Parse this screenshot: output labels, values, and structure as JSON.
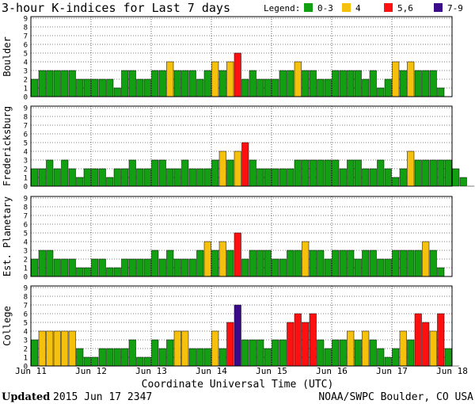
{
  "title": "3-hour K-indices for Last 7 days",
  "legend": {
    "label": "Legend:",
    "entries": [
      {
        "label": "0-3",
        "color": "#12a012"
      },
      {
        "label": "4",
        "color": "#f5c10c"
      },
      {
        "label": "5,6",
        "color": "#ff1010"
      },
      {
        "label": "7-9",
        "color": "#3a0a8a"
      }
    ]
  },
  "footer": {
    "updated_label": "Updated",
    "updated_value": "2015 Jun 17 2347",
    "source": "NOAA/SWPC Boulder, CO USA"
  },
  "chart_data": [
    {
      "type": "bar",
      "title": "Boulder",
      "ylabel": "Boulder",
      "ylim": [
        0,
        9
      ],
      "yticks": [
        0,
        1,
        2,
        3,
        4,
        5,
        6,
        7,
        8,
        9
      ],
      "xlabel": "Coordinate Universal Time (UTC)",
      "x_tick_labels": [
        "Jun 11",
        "Jun 12",
        "Jun 13",
        "Jun 14",
        "Jun 15",
        "Jun 16",
        "Jun 17",
        "Jun 18"
      ],
      "bars_per_day": 8,
      "values": [
        2,
        3,
        3,
        3,
        3,
        3,
        2,
        2,
        2,
        2,
        2,
        1,
        3,
        3,
        2,
        2,
        3,
        3,
        4,
        3,
        3,
        3,
        2,
        3,
        4,
        3,
        4,
        5,
        2,
        3,
        2,
        2,
        2,
        3,
        3,
        4,
        3,
        3,
        2,
        2,
        3,
        3,
        3,
        3,
        2,
        3,
        1,
        2,
        4,
        3,
        4,
        3,
        3,
        3,
        1,
        0
      ]
    },
    {
      "type": "bar",
      "title": "Fredericksburg",
      "ylabel": "Fredericksburg",
      "ylim": [
        0,
        9
      ],
      "yticks": [
        0,
        1,
        2,
        3,
        4,
        5,
        6,
        7,
        8,
        9
      ],
      "xlabel": "Coordinate Universal Time (UTC)",
      "x_tick_labels": [
        "Jun 11",
        "Jun 12",
        "Jun 13",
        "Jun 14",
        "Jun 15",
        "Jun 16",
        "Jun 17",
        "Jun 18"
      ],
      "bars_per_day": 8,
      "values": [
        2,
        2,
        3,
        2,
        3,
        2,
        1,
        2,
        2,
        2,
        1,
        2,
        2,
        3,
        2,
        2,
        3,
        3,
        2,
        2,
        3,
        2,
        2,
        2,
        3,
        4,
        3,
        4,
        5,
        3,
        2,
        2,
        2,
        2,
        2,
        3,
        3,
        3,
        3,
        3,
        3,
        2,
        3,
        3,
        2,
        2,
        3,
        2,
        1,
        2,
        4,
        3,
        3,
        3,
        3,
        3,
        2,
        1,
        0
      ]
    },
    {
      "type": "bar",
      "title": "Est. Planetary",
      "ylabel": "Est. Planetary",
      "ylim": [
        0,
        9
      ],
      "yticks": [
        0,
        1,
        2,
        3,
        4,
        5,
        6,
        7,
        8,
        9
      ],
      "xlabel": "Coordinate Universal Time (UTC)",
      "x_tick_labels": [
        "Jun 11",
        "Jun 12",
        "Jun 13",
        "Jun 14",
        "Jun 15",
        "Jun 16",
        "Jun 17",
        "Jun 18"
      ],
      "bars_per_day": 8,
      "values": [
        2,
        3,
        3,
        2,
        2,
        2,
        1,
        1,
        2,
        2,
        1,
        1,
        2,
        2,
        2,
        2,
        3,
        2,
        3,
        2,
        2,
        2,
        3,
        4,
        3,
        4,
        3,
        5,
        2,
        3,
        3,
        3,
        2,
        2,
        3,
        3,
        4,
        3,
        3,
        2,
        3,
        3,
        3,
        2,
        3,
        3,
        2,
        2,
        3,
        3,
        3,
        3,
        4,
        3,
        1,
        0
      ]
    },
    {
      "type": "bar",
      "title": "College",
      "ylabel": "College",
      "ylim": [
        0,
        9
      ],
      "yticks": [
        0,
        1,
        2,
        3,
        4,
        5,
        6,
        7,
        8,
        9
      ],
      "xlabel": "Coordinate Universal Time (UTC)",
      "x_tick_labels": [
        "Jun 11",
        "Jun 12",
        "Jun 13",
        "Jun 14",
        "Jun 15",
        "Jun 16",
        "Jun 17",
        "Jun 18"
      ],
      "bars_per_day": 8,
      "values": [
        3,
        4,
        4,
        4,
        4,
        4,
        2,
        1,
        1,
        2,
        2,
        2,
        2,
        3,
        1,
        1,
        3,
        2,
        3,
        4,
        4,
        2,
        2,
        2,
        4,
        2,
        5,
        7,
        3,
        3,
        3,
        2,
        3,
        3,
        5,
        6,
        5,
        6,
        3,
        2,
        3,
        3,
        4,
        3,
        4,
        3,
        2,
        1,
        2,
        4,
        3,
        6,
        5,
        4,
        6,
        2,
        0
      ]
    }
  ]
}
